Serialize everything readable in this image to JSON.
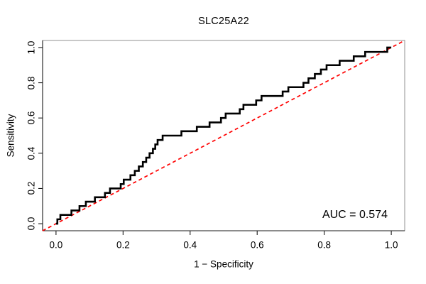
{
  "figure": {
    "title": "SLC25A22",
    "x_axis": {
      "label": "1 − Specificity",
      "tick_values": [
        0,
        0.2,
        0.4,
        0.6,
        0.8,
        1.0
      ],
      "tick_labels": [
        "0.0",
        "0.2",
        "0.4",
        "0.6",
        "0.8",
        "1.0"
      ],
      "range": [
        0,
        1
      ]
    },
    "y_axis": {
      "label": "Sensitivity",
      "tick_values": [
        0,
        0.2,
        0.4,
        0.6,
        0.8,
        1.0
      ],
      "tick_labels": [
        "0.0",
        "0.2",
        "0.4",
        "0.6",
        "0.8",
        "1.0"
      ],
      "range": [
        0,
        1
      ]
    },
    "annotation": {
      "auc_label": "AUC = 0.574"
    }
  },
  "colors": {
    "curve": "#000000",
    "diagonal": "#ff0000",
    "box": "#909090",
    "axis": "#1a1a1a",
    "text": "#000000",
    "background": "#ffffff"
  },
  "chart_data": {
    "type": "line",
    "subtype": "roc-curve",
    "title": "SLC25A22",
    "xlabel": "1 − Specificity",
    "ylabel": "Sensitivity",
    "xlim": [
      0,
      1
    ],
    "ylim": [
      0,
      1
    ],
    "grid": false,
    "auc": 0.574,
    "diagonal_reference": {
      "style": "dashed",
      "color": "#ff0000",
      "from": [
        0,
        0
      ],
      "to": [
        1,
        1
      ]
    },
    "roc_curve": {
      "style": "step",
      "color": "#000000",
      "start": [
        0,
        0
      ],
      "end": [
        1,
        1
      ],
      "step_anchors": [
        [
          0.004,
          0.025
        ],
        [
          0.013,
          0.05
        ],
        [
          0.046,
          0.075
        ],
        [
          0.07,
          0.1
        ],
        [
          0.089,
          0.125
        ],
        [
          0.116,
          0.15
        ],
        [
          0.146,
          0.175
        ],
        [
          0.161,
          0.2
        ],
        [
          0.193,
          0.225
        ],
        [
          0.202,
          0.25
        ],
        [
          0.222,
          0.275
        ],
        [
          0.235,
          0.3
        ],
        [
          0.247,
          0.325
        ],
        [
          0.259,
          0.35
        ],
        [
          0.269,
          0.375
        ],
        [
          0.279,
          0.4
        ],
        [
          0.289,
          0.425
        ],
        [
          0.296,
          0.45
        ],
        [
          0.303,
          0.475
        ],
        [
          0.318,
          0.5
        ],
        [
          0.374,
          0.525
        ],
        [
          0.42,
          0.55
        ],
        [
          0.458,
          0.575
        ],
        [
          0.492,
          0.6
        ],
        [
          0.506,
          0.625
        ],
        [
          0.548,
          0.65
        ],
        [
          0.559,
          0.675
        ],
        [
          0.597,
          0.7
        ],
        [
          0.613,
          0.725
        ],
        [
          0.676,
          0.75
        ],
        [
          0.693,
          0.775
        ],
        [
          0.738,
          0.8
        ],
        [
          0.753,
          0.825
        ],
        [
          0.772,
          0.85
        ],
        [
          0.79,
          0.875
        ],
        [
          0.807,
          0.9
        ],
        [
          0.846,
          0.925
        ],
        [
          0.888,
          0.95
        ],
        [
          0.922,
          0.975
        ],
        [
          0.988,
          1.0
        ]
      ]
    }
  }
}
